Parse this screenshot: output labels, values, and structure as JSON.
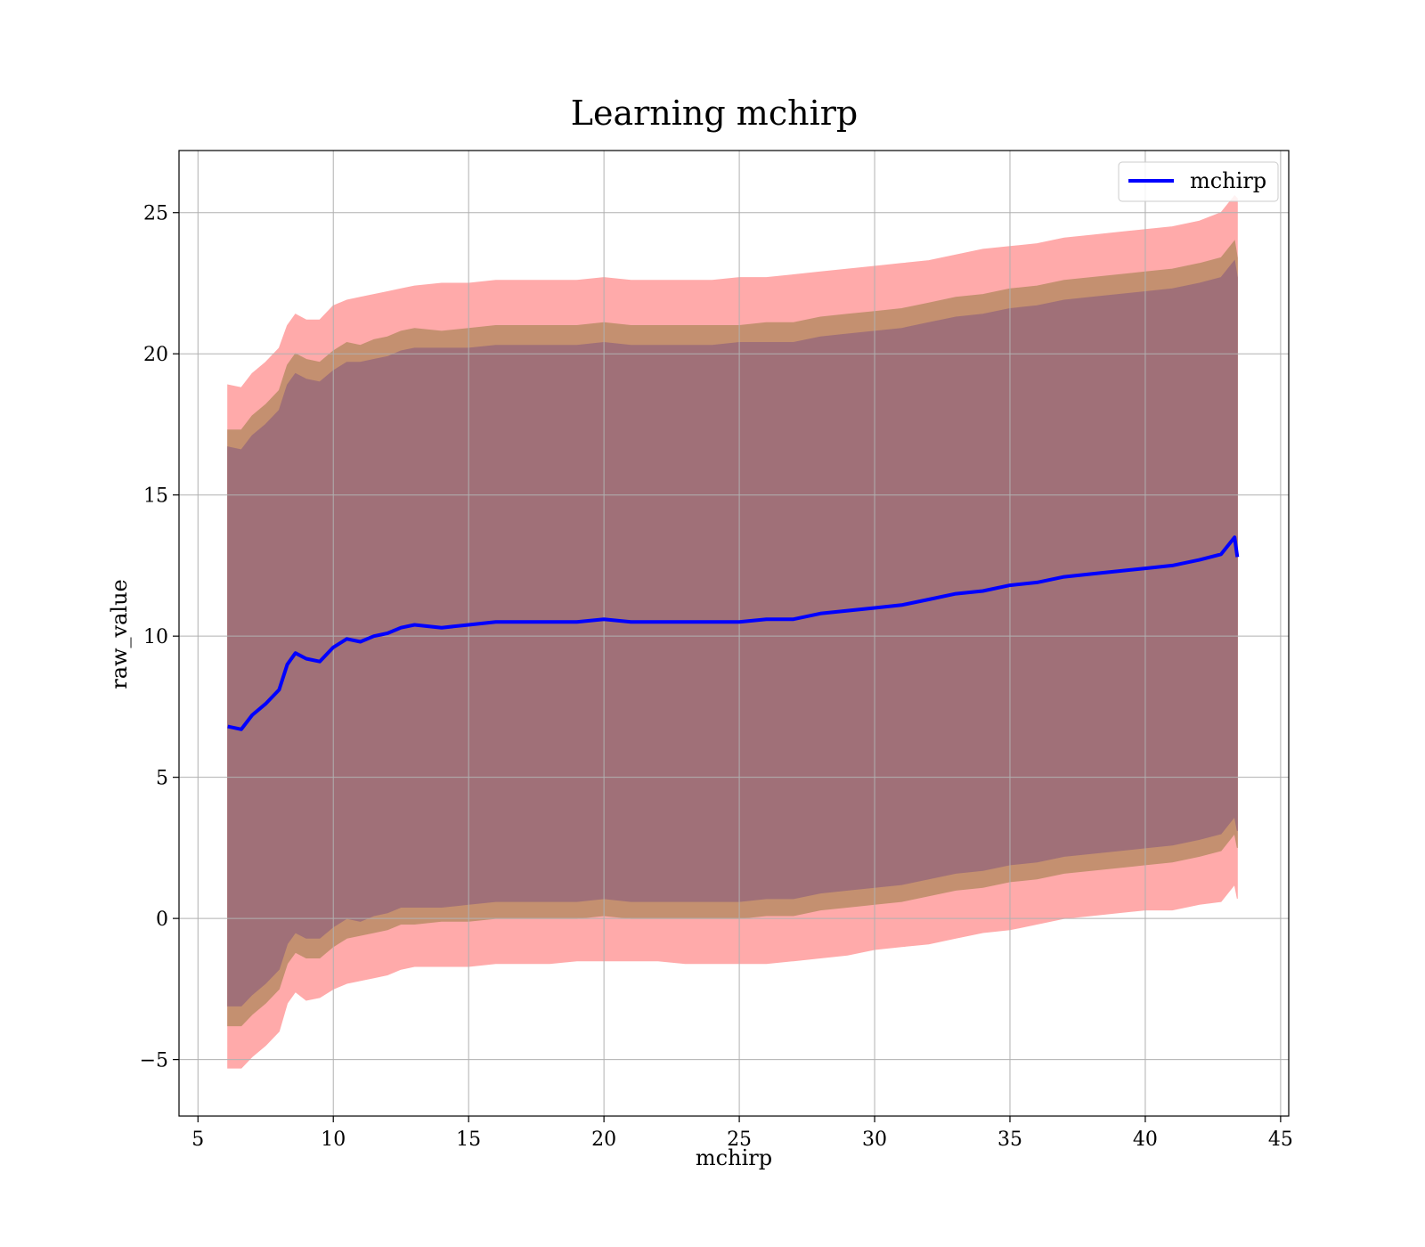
{
  "chart_data": {
    "type": "line",
    "title": "Learning mchirp",
    "xlabel": "mchirp",
    "ylabel": "raw_value",
    "xlim": [
      4.3,
      45.3
    ],
    "ylim": [
      -7.0,
      27.2
    ],
    "xticks": [
      5,
      10,
      15,
      20,
      25,
      30,
      35,
      40,
      45
    ],
    "yticks": [
      -5,
      0,
      5,
      10,
      15,
      20,
      25
    ],
    "xtick_labels": [
      "5",
      "10",
      "15",
      "20",
      "25",
      "30",
      "35",
      "40",
      "45"
    ],
    "ytick_labels": [
      "−5",
      "0",
      "5",
      "10",
      "15",
      "20",
      "25"
    ],
    "grid": true,
    "legend_position": "top-right",
    "colors": {
      "line": "#0000ff",
      "band_outer": "#ffaaaa",
      "band_middle": "#c49070",
      "band_inner": "#a07078"
    },
    "series": [
      {
        "name": "mchirp",
        "x": [
          6.1,
          6.6,
          7.0,
          7.5,
          8.0,
          8.3,
          8.6,
          9.0,
          9.5,
          10.0,
          10.5,
          11.0,
          11.5,
          12.0,
          12.5,
          13.0,
          14.0,
          15.0,
          16.0,
          17.0,
          18.0,
          19.0,
          20.0,
          21.0,
          22.0,
          23.0,
          24.0,
          25.0,
          26.0,
          27.0,
          28.0,
          29.0,
          30.0,
          31.0,
          32.0,
          33.0,
          34.0,
          35.0,
          36.0,
          37.0,
          38.0,
          39.0,
          40.0,
          41.0,
          42.0,
          42.8,
          43.3,
          43.4
        ],
        "y": [
          6.8,
          6.7,
          7.2,
          7.6,
          8.1,
          9.0,
          9.4,
          9.2,
          9.1,
          9.6,
          9.9,
          9.8,
          10.0,
          10.1,
          10.3,
          10.4,
          10.3,
          10.4,
          10.5,
          10.5,
          10.5,
          10.5,
          10.6,
          10.5,
          10.5,
          10.5,
          10.5,
          10.5,
          10.6,
          10.6,
          10.8,
          10.9,
          11.0,
          11.1,
          11.3,
          11.5,
          11.6,
          11.8,
          11.9,
          12.1,
          12.2,
          12.3,
          12.4,
          12.5,
          12.7,
          12.9,
          13.5,
          12.8
        ]
      }
    ],
    "bands": [
      {
        "x": [
          6.1,
          6.6,
          7.0,
          7.5,
          8.0,
          8.3,
          8.6,
          9.0,
          9.5,
          10.0,
          10.5,
          11.0,
          11.5,
          12.0,
          12.5,
          13.0,
          14.0,
          15.0,
          16.0,
          17.0,
          18.0,
          19.0,
          20.0,
          21.0,
          22.0,
          23.0,
          24.0,
          25.0,
          26.0,
          27.0,
          28.0,
          29.0,
          30.0,
          31.0,
          32.0,
          33.0,
          34.0,
          35.0,
          36.0,
          37.0,
          38.0,
          39.0,
          40.0,
          41.0,
          42.0,
          42.8,
          43.3,
          43.4
        ],
        "lower": [
          -5.3,
          -5.3,
          -4.9,
          -4.5,
          -4.0,
          -3.0,
          -2.6,
          -2.9,
          -2.8,
          -2.5,
          -2.3,
          -2.2,
          -2.1,
          -2.0,
          -1.8,
          -1.7,
          -1.7,
          -1.7,
          -1.6,
          -1.6,
          -1.6,
          -1.5,
          -1.5,
          -1.5,
          -1.5,
          -1.6,
          -1.6,
          -1.6,
          -1.6,
          -1.5,
          -1.4,
          -1.3,
          -1.1,
          -1.0,
          -0.9,
          -0.7,
          -0.5,
          -0.4,
          -0.2,
          0.0,
          0.1,
          0.2,
          0.3,
          0.3,
          0.5,
          0.6,
          1.2,
          0.7
        ],
        "upper": [
          18.9,
          18.8,
          19.3,
          19.7,
          20.2,
          21.0,
          21.4,
          21.2,
          21.2,
          21.7,
          21.9,
          22.0,
          22.1,
          22.2,
          22.3,
          22.4,
          22.5,
          22.5,
          22.6,
          22.6,
          22.6,
          22.6,
          22.7,
          22.6,
          22.6,
          22.6,
          22.6,
          22.7,
          22.7,
          22.8,
          22.9,
          23.0,
          23.1,
          23.2,
          23.3,
          23.5,
          23.7,
          23.8,
          23.9,
          24.1,
          24.2,
          24.3,
          24.4,
          24.5,
          24.7,
          25.0,
          25.6,
          25.5
        ]
      },
      {
        "x": [
          6.1,
          6.6,
          7.0,
          7.5,
          8.0,
          8.3,
          8.6,
          9.0,
          9.5,
          10.0,
          10.5,
          11.0,
          11.5,
          12.0,
          12.5,
          13.0,
          14.0,
          15.0,
          16.0,
          17.0,
          18.0,
          19.0,
          20.0,
          21.0,
          22.0,
          23.0,
          24.0,
          25.0,
          26.0,
          27.0,
          28.0,
          29.0,
          30.0,
          31.0,
          32.0,
          33.0,
          34.0,
          35.0,
          36.0,
          37.0,
          38.0,
          39.0,
          40.0,
          41.0,
          42.0,
          42.8,
          43.3,
          43.4
        ],
        "lower": [
          -3.8,
          -3.8,
          -3.4,
          -3.0,
          -2.5,
          -1.6,
          -1.2,
          -1.4,
          -1.4,
          -1.0,
          -0.7,
          -0.6,
          -0.5,
          -0.4,
          -0.2,
          -0.2,
          -0.1,
          -0.1,
          0.0,
          0.0,
          0.0,
          0.0,
          0.1,
          0.0,
          0.0,
          0.0,
          0.0,
          0.0,
          0.1,
          0.1,
          0.3,
          0.4,
          0.5,
          0.6,
          0.8,
          1.0,
          1.1,
          1.3,
          1.4,
          1.6,
          1.7,
          1.8,
          1.9,
          2.0,
          2.2,
          2.4,
          3.0,
          2.5
        ],
        "upper": [
          17.3,
          17.3,
          17.8,
          18.2,
          18.7,
          19.6,
          20.0,
          19.8,
          19.7,
          20.1,
          20.4,
          20.3,
          20.5,
          20.6,
          20.8,
          20.9,
          20.8,
          20.9,
          21.0,
          21.0,
          21.0,
          21.0,
          21.1,
          21.0,
          21.0,
          21.0,
          21.0,
          21.0,
          21.1,
          21.1,
          21.3,
          21.4,
          21.5,
          21.6,
          21.8,
          22.0,
          22.1,
          22.3,
          22.4,
          22.6,
          22.7,
          22.8,
          22.9,
          23.0,
          23.2,
          23.4,
          24.0,
          23.4
        ]
      },
      {
        "x": [
          6.1,
          6.6,
          7.0,
          7.5,
          8.0,
          8.3,
          8.6,
          9.0,
          9.5,
          10.0,
          10.5,
          11.0,
          11.5,
          12.0,
          12.5,
          13.0,
          14.0,
          15.0,
          16.0,
          17.0,
          18.0,
          19.0,
          20.0,
          21.0,
          22.0,
          23.0,
          24.0,
          25.0,
          26.0,
          27.0,
          28.0,
          29.0,
          30.0,
          31.0,
          32.0,
          33.0,
          34.0,
          35.0,
          36.0,
          37.0,
          38.0,
          39.0,
          40.0,
          41.0,
          42.0,
          42.8,
          43.3,
          43.4
        ],
        "lower": [
          -3.1,
          -3.1,
          -2.7,
          -2.3,
          -1.8,
          -0.9,
          -0.5,
          -0.7,
          -0.7,
          -0.3,
          0.0,
          -0.1,
          0.1,
          0.2,
          0.4,
          0.4,
          0.4,
          0.5,
          0.6,
          0.6,
          0.6,
          0.6,
          0.7,
          0.6,
          0.6,
          0.6,
          0.6,
          0.6,
          0.7,
          0.7,
          0.9,
          1.0,
          1.1,
          1.2,
          1.4,
          1.6,
          1.7,
          1.9,
          2.0,
          2.2,
          2.3,
          2.4,
          2.5,
          2.6,
          2.8,
          3.0,
          3.6,
          3.1
        ],
        "upper": [
          16.7,
          16.6,
          17.1,
          17.5,
          18.0,
          18.9,
          19.3,
          19.1,
          19.0,
          19.4,
          19.7,
          19.7,
          19.8,
          19.9,
          20.1,
          20.2,
          20.2,
          20.2,
          20.3,
          20.3,
          20.3,
          20.3,
          20.4,
          20.3,
          20.3,
          20.3,
          20.3,
          20.4,
          20.4,
          20.4,
          20.6,
          20.7,
          20.8,
          20.9,
          21.1,
          21.3,
          21.4,
          21.6,
          21.7,
          21.9,
          22.0,
          22.1,
          22.2,
          22.3,
          22.5,
          22.7,
          23.3,
          22.7
        ]
      }
    ]
  }
}
